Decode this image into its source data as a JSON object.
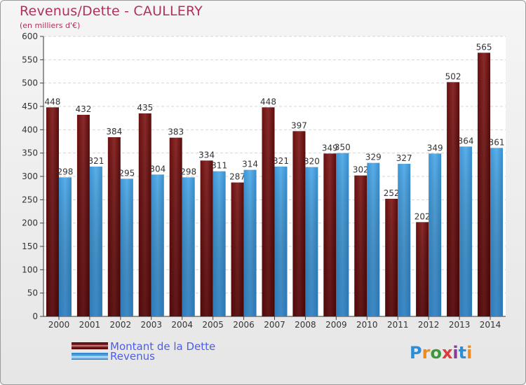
{
  "chart_data": {
    "type": "bar",
    "title": "Revenus/Dette - CAULLERY",
    "subtitle": "(en milliers d'€)",
    "xlabel": "",
    "ylabel": "",
    "ylim": [
      0,
      600
    ],
    "ytick_step": 50,
    "grid": true,
    "legend_position": "bottom-left",
    "categories": [
      "2000",
      "2001",
      "2002",
      "2003",
      "2004",
      "2005",
      "2006",
      "2007",
      "2008",
      "2009",
      "2010",
      "2011",
      "2012",
      "2013",
      "2014"
    ],
    "series": [
      {
        "name": "Montant de la Dette",
        "color": "#7a1a1a",
        "values": [
          448,
          432,
          384,
          435,
          383,
          334,
          287,
          448,
          397,
          349,
          302,
          252,
          202,
          502,
          565
        ]
      },
      {
        "name": "Revenus",
        "color": "#4aa3e0",
        "values": [
          298,
          321,
          295,
          304,
          298,
          311,
          314,
          321,
          320,
          350,
          329,
          327,
          349,
          364,
          361
        ]
      }
    ]
  },
  "branding": {
    "logo_text": "Proxiti",
    "logo_colors": [
      "#2a8fd6",
      "#f08a1c",
      "#3a9a3a",
      "#e03a3a",
      "#8a3a9a",
      "#2a8fd6",
      "#f08a1c"
    ]
  }
}
